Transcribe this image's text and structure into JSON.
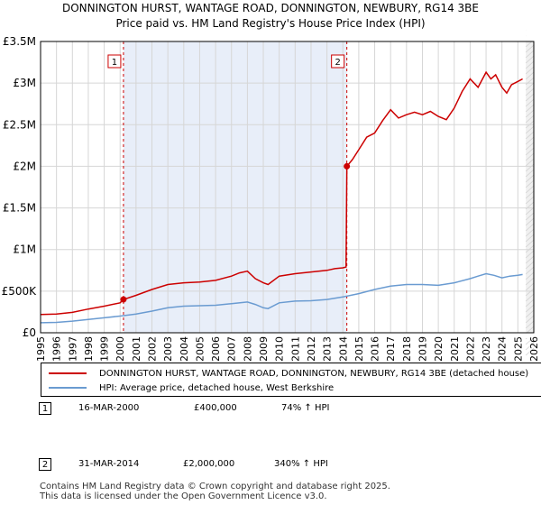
{
  "title_line1": "DONNINGTON HURST, WANTAGE ROAD, DONNINGTON, NEWBURY, RG14 3BE",
  "title_line2": "Price paid vs. HM Land Registry's House Price Index (HPI)",
  "chart_data": {
    "type": "line",
    "xlim": [
      1995,
      2026
    ],
    "ylim": [
      0,
      3500000
    ],
    "y_ticks": [
      0,
      500000,
      1000000,
      1500000,
      2000000,
      2500000,
      3000000,
      3500000
    ],
    "y_tick_labels": [
      "£0",
      "£500K",
      "£1M",
      "£1.5M",
      "£2M",
      "£2.5M",
      "£3M",
      "£3.5M"
    ],
    "x_ticks": [
      1995,
      1996,
      1997,
      1998,
      1999,
      2000,
      2001,
      2002,
      2003,
      2004,
      2005,
      2006,
      2007,
      2008,
      2009,
      2010,
      2011,
      2012,
      2013,
      2014,
      2015,
      2016,
      2017,
      2018,
      2019,
      2020,
      2021,
      2022,
      2023,
      2024,
      2025,
      2026
    ],
    "x_tick_labels": [
      "1995",
      "1996",
      "1997",
      "1998",
      "1999",
      "2000",
      "2001",
      "2002",
      "2003",
      "2004",
      "2005",
      "2006",
      "2007",
      "2008",
      "2009",
      "2010",
      "2011",
      "2012",
      "2013",
      "2014",
      "2015",
      "2016",
      "2017",
      "2018",
      "2019",
      "2020",
      "2021",
      "2022",
      "2023",
      "2024",
      "2025",
      "2026"
    ],
    "shaded_region": [
      2000.21,
      2014.25
    ],
    "future_region_start": 2025.5,
    "sales": [
      {
        "label": "1",
        "x": 2000.21,
        "y": 400000
      },
      {
        "label": "2",
        "x": 2014.25,
        "y": 2000000
      }
    ],
    "series": [
      {
        "name": "DONNINGTON HURST, WANTAGE ROAD, DONNINGTON, NEWBURY, RG14 3BE (detached house)",
        "color": "#cc0000",
        "x": [
          1995,
          1996,
          1997,
          1998,
          1999,
          2000,
          2000.21,
          2001,
          2002,
          2003,
          2004,
          2005,
          2006,
          2007,
          2007.5,
          2008,
          2008.5,
          2009,
          2009.3,
          2010,
          2011,
          2012,
          2013,
          2013.5,
          2014,
          2014.2,
          2014.25,
          2014.6,
          2015,
          2015.5,
          2016,
          2016.5,
          2017,
          2017.5,
          2018,
          2018.5,
          2019,
          2019.5,
          2020,
          2020.5,
          2021,
          2021.5,
          2022,
          2022.5,
          2023,
          2023.3,
          2023.6,
          2024,
          2024.3,
          2024.6,
          2025,
          2025.3
        ],
        "values": [
          220000,
          225000,
          245000,
          285000,
          320000,
          360000,
          400000,
          450000,
          520000,
          580000,
          600000,
          610000,
          630000,
          680000,
          720000,
          740000,
          650000,
          600000,
          580000,
          680000,
          710000,
          730000,
          750000,
          770000,
          780000,
          790000,
          2000000,
          2080000,
          2200000,
          2350000,
          2400000,
          2550000,
          2680000,
          2580000,
          2620000,
          2650000,
          2620000,
          2660000,
          2600000,
          2560000,
          2700000,
          2900000,
          3050000,
          2950000,
          3130000,
          3050000,
          3100000,
          2950000,
          2880000,
          2980000,
          3020000,
          3050000
        ]
      },
      {
        "name": "HPI: Average price, detached house, West Berkshire",
        "color": "#6a9bd1",
        "x": [
          1995,
          1996,
          1997,
          1998,
          1999,
          2000,
          2001,
          2002,
          2003,
          2004,
          2005,
          2006,
          2007,
          2008,
          2008.5,
          2009,
          2009.3,
          2010,
          2011,
          2012,
          2013,
          2014,
          2015,
          2016,
          2017,
          2018,
          2019,
          2020,
          2021,
          2022,
          2022.5,
          2023,
          2023.5,
          2024,
          2024.5,
          2025,
          2025.3
        ],
        "values": [
          120000,
          125000,
          140000,
          160000,
          180000,
          200000,
          225000,
          260000,
          300000,
          320000,
          325000,
          330000,
          350000,
          370000,
          340000,
          300000,
          290000,
          360000,
          380000,
          385000,
          400000,
          430000,
          470000,
          520000,
          560000,
          580000,
          580000,
          570000,
          600000,
          650000,
          680000,
          710000,
          690000,
          660000,
          680000,
          690000,
          700000
        ]
      }
    ]
  },
  "legend": {
    "property_label": "DONNINGTON HURST, WANTAGE ROAD, DONNINGTON, NEWBURY, RG14 3BE (detached house)",
    "hpi_label": "HPI: Average price, detached house, West Berkshire"
  },
  "transactions": [
    {
      "num": "1",
      "date": "16-MAR-2000",
      "price": "£400,000",
      "hpi": "74% ↑ HPI"
    },
    {
      "num": "2",
      "date": "31-MAR-2014",
      "price": "£2,000,000",
      "hpi": "340% ↑ HPI"
    }
  ],
  "footer_line1": "Contains HM Land Registry data © Crown copyright and database right 2025.",
  "footer_line2": "This data is licensed under the Open Government Licence v3.0.",
  "colors": {
    "property": "#cc0000",
    "hpi": "#6a9bd1",
    "shade": "#e8eef9",
    "grid": "#d6d6d6"
  }
}
